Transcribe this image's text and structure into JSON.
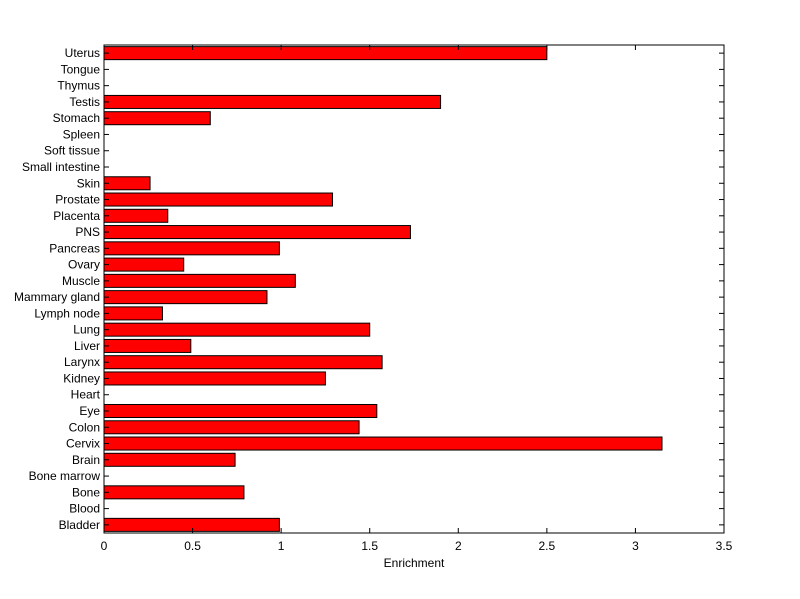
{
  "chart_data": {
    "type": "bar",
    "orientation": "horizontal",
    "xlabel": "Enrichment",
    "ylabel": "",
    "xlim": [
      0,
      3.5
    ],
    "xticks": [
      "0",
      "0.5",
      "1",
      "1.5",
      "2",
      "2.5",
      "3",
      "3.5"
    ],
    "grid": false,
    "bar_color": "#ff0000",
    "categories": [
      "Uterus",
      "Tongue",
      "Thymus",
      "Testis",
      "Stomach",
      "Spleen",
      "Soft tissue",
      "Small intestine",
      "Skin",
      "Prostate",
      "Placenta",
      "PNS",
      "Pancreas",
      "Ovary",
      "Muscle",
      "Mammary gland",
      "Lymph node",
      "Lung",
      "Liver",
      "Larynx",
      "Kidney",
      "Heart",
      "Eye",
      "Colon",
      "Cervix",
      "Brain",
      "Bone marrow",
      "Bone",
      "Blood",
      "Bladder"
    ],
    "values": [
      2.5,
      0,
      0,
      1.9,
      0.6,
      0,
      0,
      0,
      0.26,
      1.29,
      0.36,
      1.73,
      0.99,
      0.45,
      1.08,
      0.92,
      0.33,
      1.5,
      0.49,
      1.57,
      1.25,
      0,
      1.54,
      1.44,
      3.15,
      0.74,
      0,
      0.79,
      0,
      0.99
    ]
  }
}
